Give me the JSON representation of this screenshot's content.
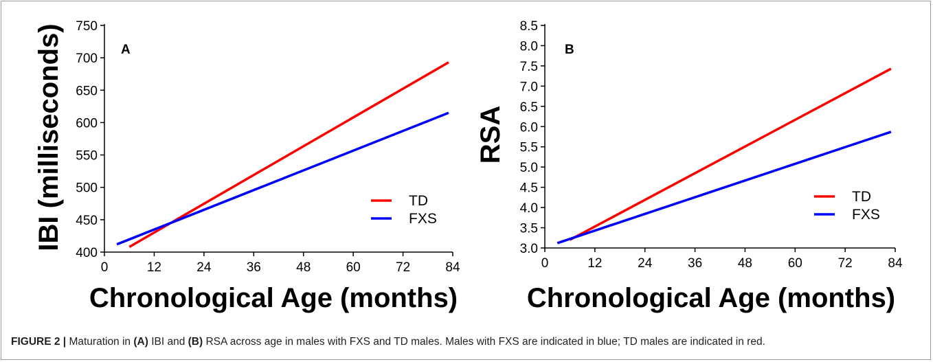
{
  "chart_data": [
    {
      "type": "line",
      "panel_label": "A",
      "xlabel": "Chronological Age (months)",
      "ylabel": "IBI (milliseconds)",
      "xlim": [
        0,
        84
      ],
      "ylim": [
        400,
        750
      ],
      "xticks": [
        0,
        12,
        24,
        36,
        48,
        60,
        72,
        84
      ],
      "yticks": [
        400,
        450,
        500,
        550,
        600,
        650,
        700,
        750
      ],
      "ytick_labels": [
        "400",
        "450",
        "500",
        "550",
        "600",
        "650",
        "700",
        "750"
      ],
      "legend_position": "bottom-right",
      "series": [
        {
          "name": "TD",
          "color": "#ff0000",
          "x": [
            6,
            83
          ],
          "y": [
            408,
            693
          ]
        },
        {
          "name": "FXS",
          "color": "#0000ff",
          "x": [
            3,
            83
          ],
          "y": [
            412,
            615
          ]
        }
      ]
    },
    {
      "type": "line",
      "panel_label": "B",
      "xlabel": "Chronological Age (months)",
      "ylabel": "RSA",
      "xlim": [
        0,
        84
      ],
      "ylim": [
        3.0,
        8.5
      ],
      "xticks": [
        0,
        12,
        24,
        36,
        48,
        60,
        72,
        84
      ],
      "yticks": [
        3.0,
        3.5,
        4.0,
        4.5,
        5.0,
        5.5,
        6.0,
        6.5,
        7.0,
        7.5,
        8.0,
        8.5
      ],
      "ytick_labels": [
        "3.0",
        "3.5",
        "4.0",
        "4.5",
        "5.0",
        "5.5",
        "6.0",
        "6.5",
        "7.0",
        "7.5",
        "8.0",
        "8.5"
      ],
      "legend_position": "bottom-right",
      "series": [
        {
          "name": "TD",
          "color": "#ff0000",
          "x": [
            6,
            83
          ],
          "y": [
            3.2,
            7.43
          ]
        },
        {
          "name": "FXS",
          "color": "#0000ff",
          "x": [
            3,
            83
          ],
          "y": [
            3.12,
            5.87
          ]
        }
      ]
    }
  ],
  "caption": {
    "lead": "FIGURE 2 |",
    "t1": " Maturation in ",
    "a": "(A)",
    "t2": " IBI and ",
    "b": "(B)",
    "t3": " RSA across age in males with FXS and TD males. Males with FXS are indicated in blue; TD males are indicated in red."
  }
}
